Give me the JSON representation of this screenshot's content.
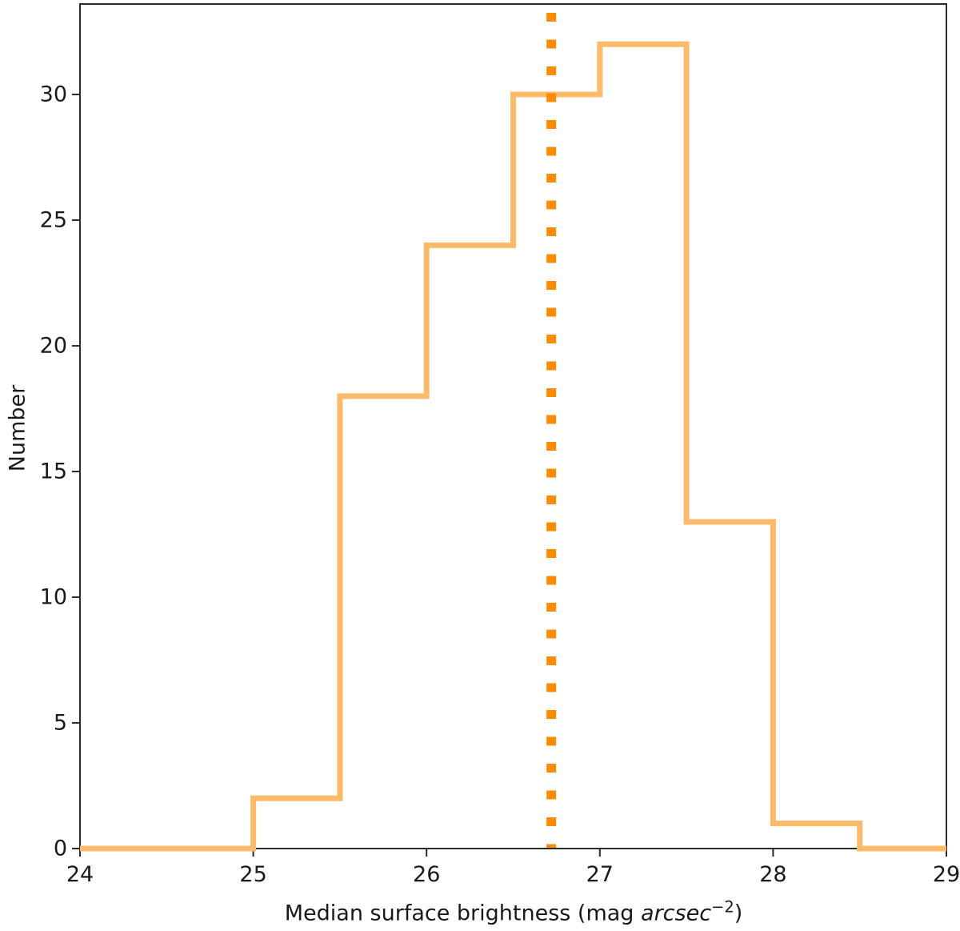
{
  "chart_data": {
    "type": "bar",
    "subtype": "step-histogram",
    "title": "",
    "ylabel": "Number",
    "xlabel": {
      "prefix": "Median surface brightness (mag ",
      "italic": "arcsec",
      "superscript": "−2",
      "suffix": ")"
    },
    "xlim": [
      24,
      29
    ],
    "ylim": [
      0,
      33.6
    ],
    "xticks": [
      24,
      25,
      26,
      27,
      28,
      29
    ],
    "yticks": [
      0,
      5,
      10,
      15,
      20,
      25,
      30
    ],
    "bin_edges": [
      24,
      24.5,
      25,
      25.5,
      26,
      26.5,
      27,
      27.5,
      28,
      28.5,
      29
    ],
    "counts": [
      0,
      0,
      2,
      18,
      24,
      30,
      32,
      13,
      1,
      0
    ],
    "series": [
      {
        "name": "surface-brightness-histogram",
        "color": "#fdba6a"
      }
    ],
    "median_line": {
      "x": 26.72,
      "color": "#ff8c00",
      "style": "dotted"
    },
    "axis_color": "#2b2b2b",
    "tick_label_color": "#1a1a1a",
    "background": "#ffffff",
    "grid": false,
    "legend": null
  }
}
